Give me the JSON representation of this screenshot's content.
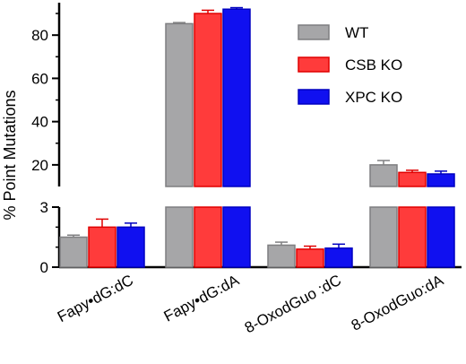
{
  "chart_data": {
    "type": "bar",
    "ylabel": "% Point Mutations",
    "xlabel": "",
    "title": "",
    "categories": [
      "Fapy•dG:dC",
      "Fapy•dG:dA",
      "8-OxodGuo :dC",
      "8-OxodGuo:dA"
    ],
    "series": [
      {
        "name": "WT",
        "color": "#a6a6a8",
        "edge": "#7f7f81",
        "values": [
          1.5,
          85.3,
          1.1,
          20.0
        ],
        "errors": [
          0.1,
          0.5,
          0.15,
          2.0
        ]
      },
      {
        "name": "CSB KO",
        "color": "#ff3b3b",
        "edge": "#e00000",
        "values": [
          2.0,
          90.0,
          0.9,
          16.5
        ],
        "errors": [
          0.4,
          1.5,
          0.15,
          1.0
        ]
      },
      {
        "name": "XPC KO",
        "color": "#1010f0",
        "edge": "#0000c0",
        "values": [
          2.0,
          92.0,
          0.95,
          15.8
        ],
        "errors": [
          0.2,
          0.7,
          0.2,
          1.3
        ]
      }
    ],
    "axis_breaks": {
      "lower_range": [
        0,
        3
      ],
      "lower_ticks": [
        "0",
        "3"
      ],
      "upper_range": [
        10,
        95
      ],
      "upper_ticks": [
        "20",
        "40",
        "60",
        "80"
      ]
    },
    "legend": {
      "position": "top-right",
      "entries": [
        "WT",
        "CSB KO",
        "XPC KO"
      ]
    },
    "grid": false
  }
}
